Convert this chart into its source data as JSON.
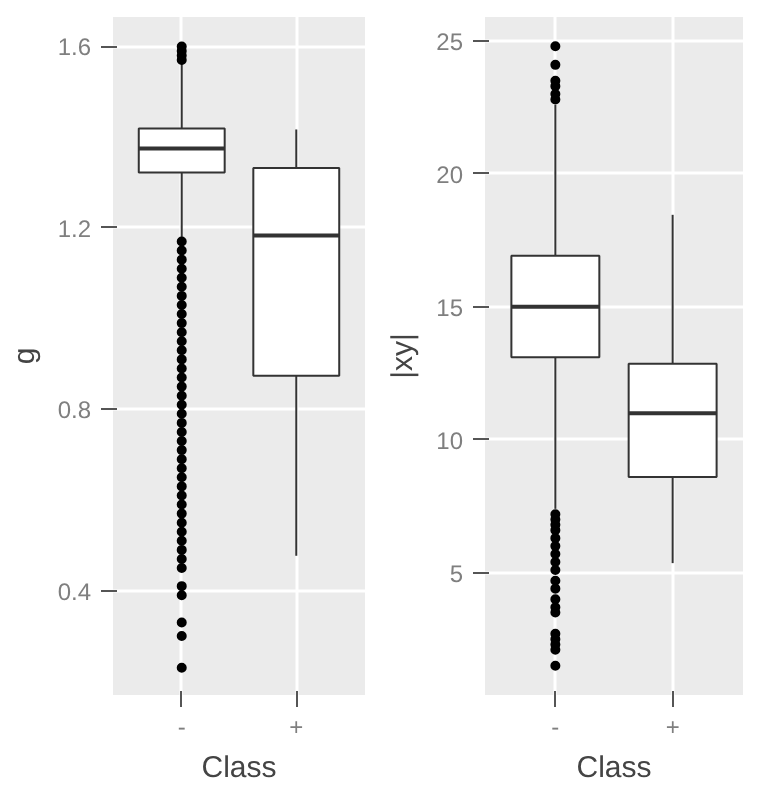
{
  "chart_data": [
    {
      "type": "box",
      "xlabel": "Class",
      "ylabel": "g",
      "categories": [
        "-",
        "+"
      ],
      "ylim": [
        0.17,
        1.665
      ],
      "yticks": [
        0.4,
        0.8,
        1.2,
        1.6
      ],
      "grid": true,
      "boxes": [
        {
          "low": 1.18,
          "q1": 1.322,
          "median": 1.375,
          "q3": 1.419,
          "high": 1.565,
          "outliers": [
            1.57,
            1.58,
            1.59,
            1.6,
            1.17,
            1.15,
            1.13,
            1.11,
            1.09,
            1.07,
            1.05,
            1.03,
            1.01,
            0.99,
            0.97,
            0.95,
            0.93,
            0.91,
            0.89,
            0.87,
            0.85,
            0.83,
            0.81,
            0.79,
            0.77,
            0.75,
            0.73,
            0.71,
            0.69,
            0.67,
            0.65,
            0.63,
            0.61,
            0.59,
            0.57,
            0.55,
            0.53,
            0.51,
            0.49,
            0.47,
            0.45,
            0.41,
            0.39,
            0.33,
            0.3,
            0.23
          ]
        },
        {
          "low": 0.477,
          "q1": 0.874,
          "median": 1.183,
          "q3": 1.332,
          "high": 1.417
        }
      ]
    },
    {
      "type": "box",
      "xlabel": "Class",
      "ylabel": "|xy|",
      "categories": [
        "-",
        "+"
      ],
      "ylim": [
        0.4,
        25.9
      ],
      "yticks": [
        5,
        10,
        15,
        20,
        25
      ],
      "grid": true,
      "boxes": [
        {
          "low": 7.4,
          "q1": 13.1,
          "median": 15.0,
          "q3": 16.92,
          "high": 22.6,
          "outliers": [
            22.8,
            23.0,
            23.3,
            23.5,
            24.1,
            24.8,
            7.2,
            7.0,
            6.8,
            6.6,
            6.3,
            6.0,
            5.7,
            5.4,
            5.1,
            4.7,
            4.4,
            4.0,
            3.7,
            3.5,
            2.7,
            2.5,
            2.3,
            2.1,
            1.5
          ]
        },
        {
          "low": 5.36,
          "q1": 8.6,
          "median": 11.0,
          "q3": 12.86,
          "high": 18.46
        }
      ]
    }
  ]
}
